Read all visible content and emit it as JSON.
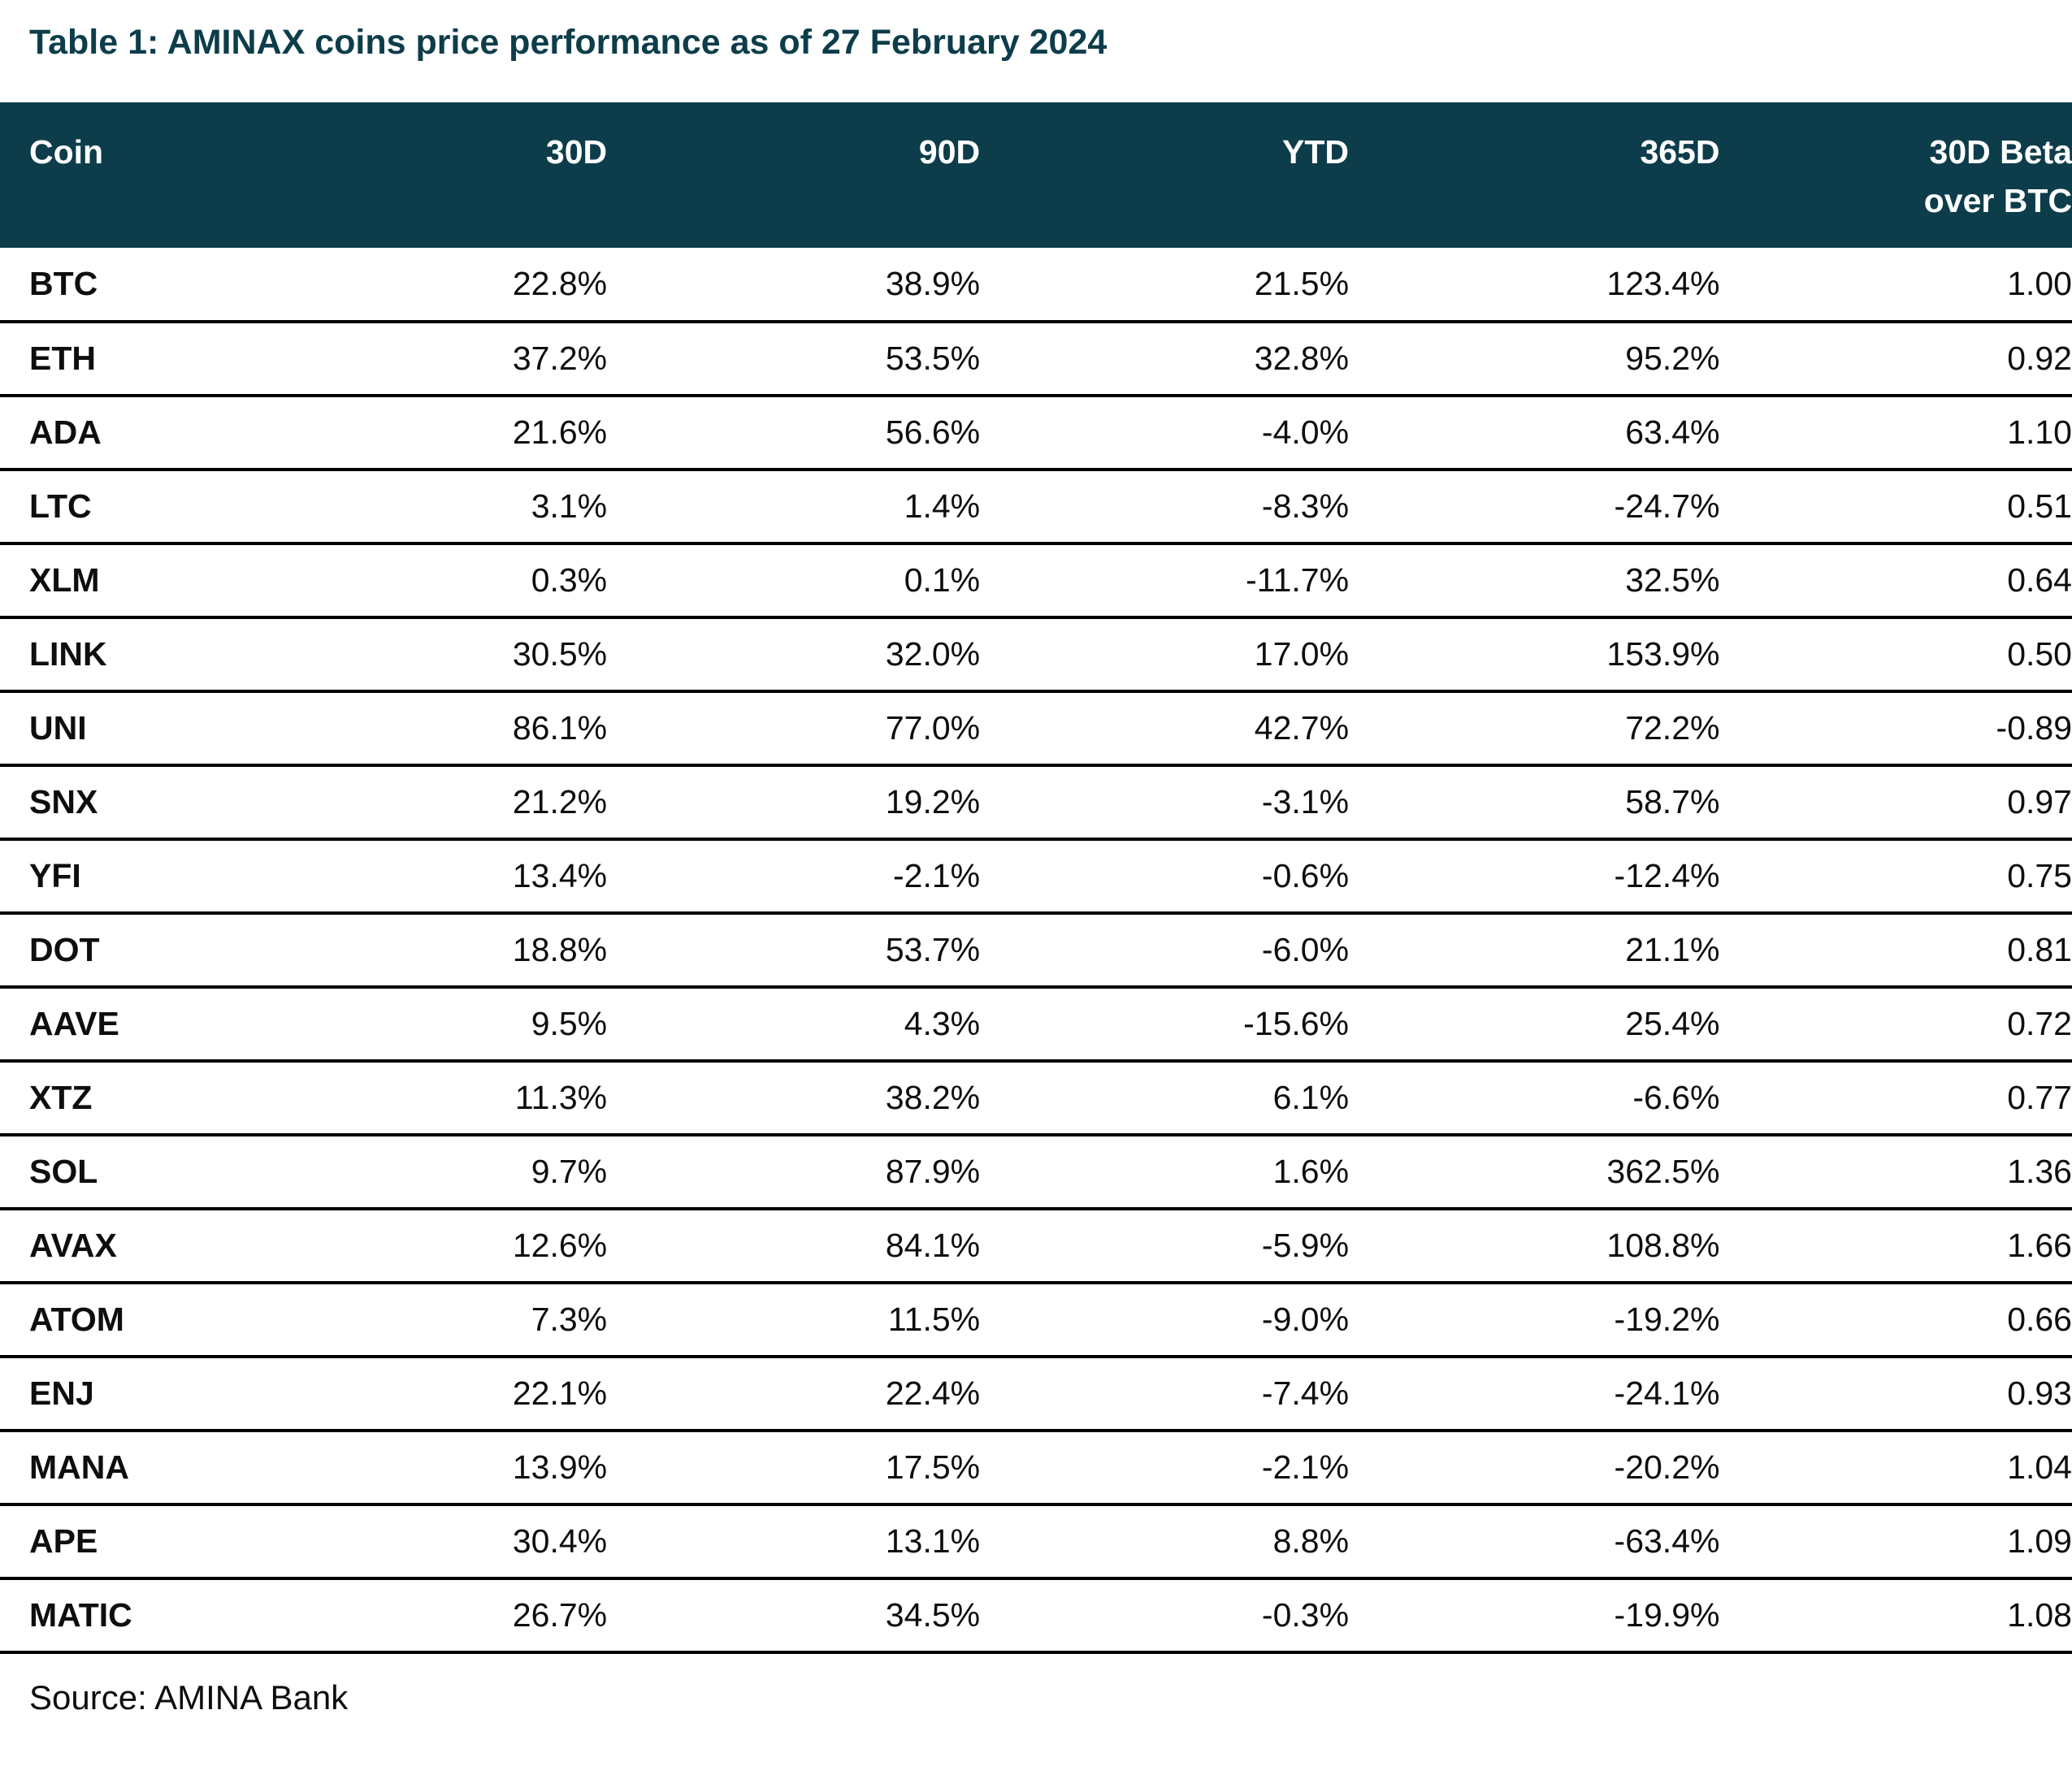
{
  "title": "Table 1: AMINAX coins price performance as of 27 February 2024",
  "source": "Source: AMINA Bank",
  "colors": {
    "header_bg": "#0d3d4b",
    "title_text": "#0d3d4b",
    "header_text": "#ffffff",
    "row_border": "#000000",
    "body_text": "#0e0e0e",
    "page_bg": "#ffffff"
  },
  "chart_data": {
    "type": "table",
    "columns": [
      "Coin",
      "30D",
      "90D",
      "YTD",
      "365D",
      "30D Beta over BTC"
    ],
    "header_display": {
      "coin": "Coin",
      "d30": "30D",
      "d90": "90D",
      "ytd": "YTD",
      "d365": "365D",
      "beta_line1": "30D Beta",
      "beta_line2": "over BTC"
    },
    "rows": [
      {
        "coin": "BTC",
        "d30": "22.8%",
        "d90": "38.9%",
        "ytd": "21.5%",
        "d365": "123.4%",
        "beta": "1.00"
      },
      {
        "coin": "ETH",
        "d30": "37.2%",
        "d90": "53.5%",
        "ytd": "32.8%",
        "d365": "95.2%",
        "beta": "0.92"
      },
      {
        "coin": "ADA",
        "d30": "21.6%",
        "d90": "56.6%",
        "ytd": "-4.0%",
        "d365": "63.4%",
        "beta": "1.10"
      },
      {
        "coin": "LTC",
        "d30": "3.1%",
        "d90": "1.4%",
        "ytd": "-8.3%",
        "d365": "-24.7%",
        "beta": "0.51"
      },
      {
        "coin": "XLM",
        "d30": "0.3%",
        "d90": "0.1%",
        "ytd": "-11.7%",
        "d365": "32.5%",
        "beta": "0.64"
      },
      {
        "coin": "LINK",
        "d30": "30.5%",
        "d90": "32.0%",
        "ytd": "17.0%",
        "d365": "153.9%",
        "beta": "0.50"
      },
      {
        "coin": "UNI",
        "d30": "86.1%",
        "d90": "77.0%",
        "ytd": "42.7%",
        "d365": "72.2%",
        "beta": "-0.89"
      },
      {
        "coin": "SNX",
        "d30": "21.2%",
        "d90": "19.2%",
        "ytd": "-3.1%",
        "d365": "58.7%",
        "beta": "0.97"
      },
      {
        "coin": "YFI",
        "d30": "13.4%",
        "d90": "-2.1%",
        "ytd": "-0.6%",
        "d365": "-12.4%",
        "beta": "0.75"
      },
      {
        "coin": "DOT",
        "d30": "18.8%",
        "d90": "53.7%",
        "ytd": "-6.0%",
        "d365": "21.1%",
        "beta": "0.81"
      },
      {
        "coin": "AAVE",
        "d30": "9.5%",
        "d90": "4.3%",
        "ytd": "-15.6%",
        "d365": "25.4%",
        "beta": "0.72"
      },
      {
        "coin": "XTZ",
        "d30": "11.3%",
        "d90": "38.2%",
        "ytd": "6.1%",
        "d365": "-6.6%",
        "beta": "0.77"
      },
      {
        "coin": "SOL",
        "d30": "9.7%",
        "d90": "87.9%",
        "ytd": "1.6%",
        "d365": "362.5%",
        "beta": "1.36"
      },
      {
        "coin": "AVAX",
        "d30": "12.6%",
        "d90": "84.1%",
        "ytd": "-5.9%",
        "d365": "108.8%",
        "beta": "1.66"
      },
      {
        "coin": "ATOM",
        "d30": "7.3%",
        "d90": "11.5%",
        "ytd": "-9.0%",
        "d365": "-19.2%",
        "beta": "0.66"
      },
      {
        "coin": "ENJ",
        "d30": "22.1%",
        "d90": "22.4%",
        "ytd": "-7.4%",
        "d365": "-24.1%",
        "beta": "0.93"
      },
      {
        "coin": "MANA",
        "d30": "13.9%",
        "d90": "17.5%",
        "ytd": "-2.1%",
        "d365": "-20.2%",
        "beta": "1.04"
      },
      {
        "coin": "APE",
        "d30": "30.4%",
        "d90": "13.1%",
        "ytd": "8.8%",
        "d365": "-63.4%",
        "beta": "1.09"
      },
      {
        "coin": "MATIC",
        "d30": "26.7%",
        "d90": "34.5%",
        "ytd": "-0.3%",
        "d365": "-19.9%",
        "beta": "1.08"
      }
    ]
  }
}
